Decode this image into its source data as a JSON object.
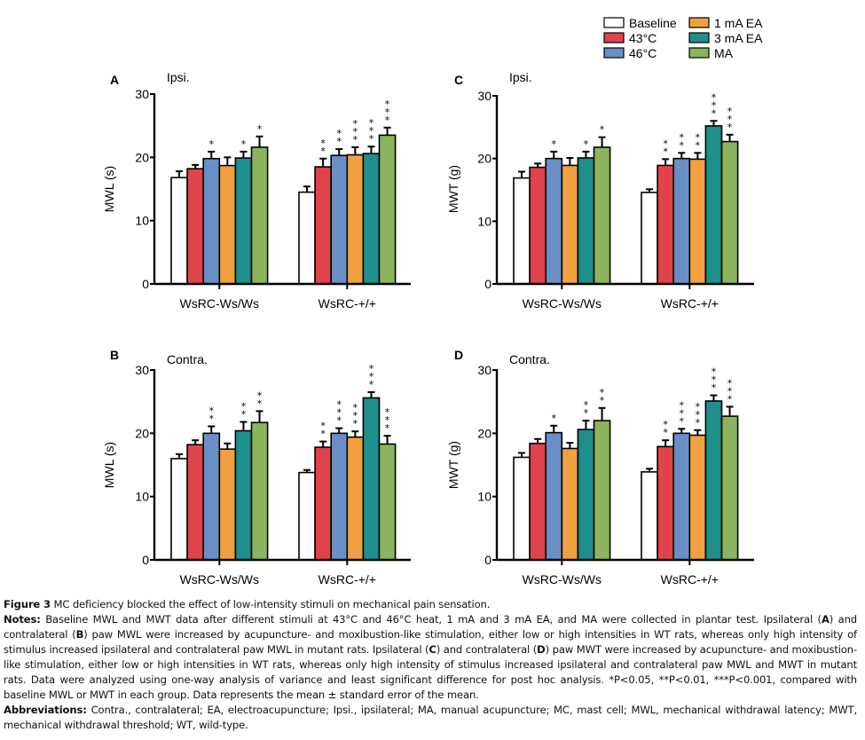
{
  "legend": {
    "items": [
      {
        "label": "Baseline",
        "color": "#ffffff"
      },
      {
        "label": "43°C",
        "color": "#e0434a"
      },
      {
        "label": "46°C",
        "color": "#6a8fc6"
      },
      {
        "label": "1 mA EA",
        "color": "#f0a040"
      },
      {
        "label": "3 mA EA",
        "color": "#1e8f8a"
      },
      {
        "label": "MA",
        "color": "#8db35e"
      }
    ]
  },
  "chart_data": [
    {
      "type": "bar",
      "panel": "A",
      "title": "Ipsi.",
      "ylabel": "MWL (s)",
      "xlabel": "",
      "ylim": [
        0,
        30
      ],
      "yticks": [
        0,
        10,
        20,
        30
      ],
      "categories": [
        "WsRC-Ws/Ws",
        "WsRC-+/+"
      ],
      "series": [
        {
          "name": "Baseline",
          "values": [
            16.8,
            14.5
          ],
          "errors": [
            1.0,
            0.9
          ],
          "stars": [
            "",
            ""
          ]
        },
        {
          "name": "43°C",
          "values": [
            18.2,
            18.5
          ],
          "errors": [
            0.6,
            1.3
          ],
          "stars": [
            "",
            "**"
          ]
        },
        {
          "name": "46°C",
          "values": [
            19.8,
            20.3
          ],
          "errors": [
            1.1,
            1.0
          ],
          "stars": [
            "*",
            "**"
          ]
        },
        {
          "name": "1 mA EA",
          "values": [
            18.7,
            20.4
          ],
          "errors": [
            1.3,
            1.2
          ],
          "stars": [
            "",
            "***"
          ]
        },
        {
          "name": "3 mA EA",
          "values": [
            19.9,
            20.6
          ],
          "errors": [
            1.0,
            1.1
          ],
          "stars": [
            "*",
            "***"
          ]
        },
        {
          "name": "MA",
          "values": [
            21.6,
            23.5
          ],
          "errors": [
            1.7,
            1.2
          ],
          "stars": [
            "*",
            "***"
          ]
        }
      ]
    },
    {
      "type": "bar",
      "panel": "B",
      "title": "Contra.",
      "ylabel": "MWL (s)",
      "xlabel": "",
      "ylim": [
        0,
        30
      ],
      "yticks": [
        0,
        10,
        20,
        30
      ],
      "categories": [
        "WsRC-Ws/Ws",
        "WsRC-+/+"
      ],
      "series": [
        {
          "name": "Baseline",
          "values": [
            16.0,
            13.8
          ],
          "errors": [
            0.7,
            0.4
          ],
          "stars": [
            "",
            ""
          ]
        },
        {
          "name": "43°C",
          "values": [
            18.2,
            17.8
          ],
          "errors": [
            0.7,
            0.9
          ],
          "stars": [
            "",
            "**"
          ]
        },
        {
          "name": "46°C",
          "values": [
            20.0,
            20.0
          ],
          "errors": [
            1.1,
            0.8
          ],
          "stars": [
            "**",
            "***"
          ]
        },
        {
          "name": "1 mA EA",
          "values": [
            17.5,
            19.4
          ],
          "errors": [
            0.9,
            0.9
          ],
          "stars": [
            "",
            "***"
          ]
        },
        {
          "name": "3 mA EA",
          "values": [
            20.4,
            25.6
          ],
          "errors": [
            1.4,
            0.9
          ],
          "stars": [
            "**",
            "***"
          ]
        },
        {
          "name": "MA",
          "values": [
            21.7,
            18.3
          ],
          "errors": [
            1.8,
            1.3
          ],
          "stars": [
            "**",
            "***"
          ]
        }
      ]
    },
    {
      "type": "bar",
      "panel": "C",
      "title": "Ipsi.",
      "ylabel": "MWT (g)",
      "xlabel": "",
      "ylim": [
        0,
        30
      ],
      "yticks": [
        0,
        10,
        20,
        30
      ],
      "categories": [
        "WsRC-Ws/Ws",
        "WsRC-+/+"
      ],
      "series": [
        {
          "name": "Baseline",
          "values": [
            16.9,
            14.6
          ],
          "errors": [
            1.0,
            0.5
          ],
          "stars": [
            "",
            ""
          ]
        },
        {
          "name": "43°C",
          "values": [
            18.6,
            18.9
          ],
          "errors": [
            0.6,
            1.0
          ],
          "stars": [
            "",
            "**"
          ]
        },
        {
          "name": "46°C",
          "values": [
            20.0,
            20.0
          ],
          "errors": [
            1.1,
            0.9
          ],
          "stars": [
            "*",
            "**"
          ]
        },
        {
          "name": "1 mA EA",
          "values": [
            18.9,
            19.9
          ],
          "errors": [
            1.2,
            1.0
          ],
          "stars": [
            "",
            "**"
          ]
        },
        {
          "name": "3 mA EA",
          "values": [
            20.1,
            25.2
          ],
          "errors": [
            1.0,
            0.8
          ],
          "stars": [
            "*",
            "***"
          ]
        },
        {
          "name": "MA",
          "values": [
            21.8,
            22.7
          ],
          "errors": [
            1.6,
            1.1
          ],
          "stars": [
            "*",
            "***"
          ]
        }
      ]
    },
    {
      "type": "bar",
      "panel": "D",
      "title": "Contra.",
      "ylabel": "MWT (g)",
      "xlabel": "",
      "ylim": [
        0,
        30
      ],
      "yticks": [
        0,
        10,
        20,
        30
      ],
      "categories": [
        "WsRC-Ws/Ws",
        "WsRC-+/+"
      ],
      "series": [
        {
          "name": "Baseline",
          "values": [
            16.2,
            13.9
          ],
          "errors": [
            0.7,
            0.5
          ],
          "stars": [
            "",
            ""
          ]
        },
        {
          "name": "43°C",
          "values": [
            18.4,
            17.9
          ],
          "errors": [
            0.7,
            1.0
          ],
          "stars": [
            "",
            "**"
          ]
        },
        {
          "name": "46°C",
          "values": [
            20.1,
            20.0
          ],
          "errors": [
            1.1,
            0.7
          ],
          "stars": [
            "*",
            "***"
          ]
        },
        {
          "name": "1 mA EA",
          "values": [
            17.6,
            19.7
          ],
          "errors": [
            0.9,
            0.8
          ],
          "stars": [
            "",
            "***"
          ]
        },
        {
          "name": "3 mA EA",
          "values": [
            20.6,
            25.1
          ],
          "errors": [
            1.4,
            0.9
          ],
          "stars": [
            "**",
            "***"
          ]
        },
        {
          "name": "MA",
          "values": [
            22.0,
            22.7
          ],
          "errors": [
            2.0,
            1.5
          ],
          "stars": [
            "**",
            "***"
          ]
        }
      ]
    }
  ],
  "caption": {
    "figure_label": "Figure 3",
    "figure_title": "MC deficiency blocked the effect of low-intensity stimuli on mechanical pain sensation.",
    "notes_label": "Notes:",
    "notes_text_1": "Baseline MWL and MWT data after different stimuli at 43°C and 46°C heat, 1 mA and 3 mA EA, and MA were collected in plantar test. Ipsilateral (",
    "notes_A": "A",
    "notes_text_2": ") and contralateral (",
    "notes_B": "B",
    "notes_text_3": ") paw MWL were increased by acupuncture- and moxibustion-like stimulation, either low or high intensities in WT rats, whereas only high intensity of stimulus increased ipsilateral and contralateral paw MWL in mutant rats. Ipsilateral (",
    "notes_C": "C",
    "notes_text_4": ") and contralateral (",
    "notes_D": "D",
    "notes_text_5": ") paw MWT were increased by acupuncture- and moxibustion-like stimulation, either low or high intensities in WT rats, whereas only high intensity of stimulus increased ipsilateral and contralateral paw MWL and MWT in mutant rats. Data were analyzed using one-way analysis of variance and least significant difference for post hoc analysis. *P<0.05, **P<0.01, ***P<0.001, compared with baseline MWL or MWT in each group. Data represents the mean ± standard error of the mean.",
    "abbrev_label": "Abbreviations:",
    "abbrev_text": "Contra., contralateral; EA, electroacupuncture; Ipsi., ipsilateral; MA, manual acupuncture; MC, mast cell; MWL, mechanical withdrawal latency; MWT, mechanical withdrawal threshold; WT, wild-type."
  }
}
